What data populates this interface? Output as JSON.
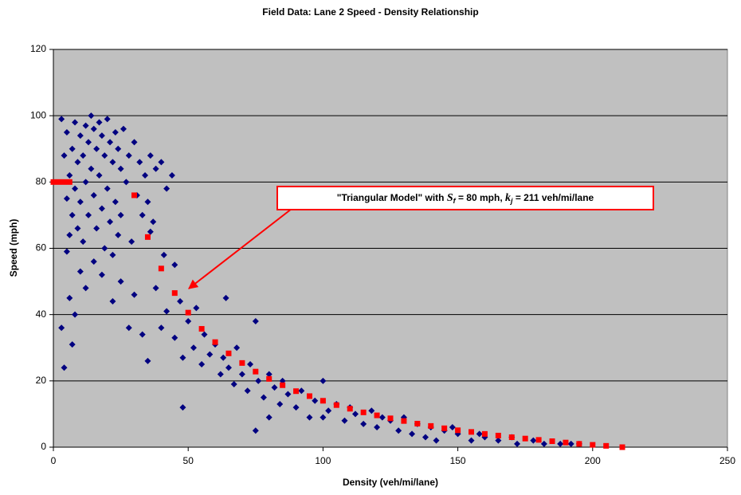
{
  "chart_data": {
    "type": "scatter",
    "title": "Field Data: Lane 2 Speed - Density Relationship",
    "x_label": "Density (veh/mi/lane)",
    "y_label": "Speed (mph)",
    "annotation": [
      "\"Triangular Model\" with ",
      "S",
      "f",
      " = 80 mph, ",
      "k",
      "j",
      " = 211 veh/mi/lane"
    ],
    "annotation_color": "#ff0000",
    "xlim": [
      0,
      250
    ],
    "xticks": [
      0,
      50,
      100,
      150,
      200,
      250
    ],
    "ylim": [
      0,
      120
    ],
    "yticks": [
      0,
      20,
      40,
      60,
      80,
      100,
      120
    ],
    "grid": true,
    "background": "#c0c0c0",
    "series": [
      {
        "color": "#000080",
        "marker": "diamond",
        "x": [
          3,
          4,
          5,
          5,
          6,
          6,
          7,
          7,
          8,
          8,
          9,
          9,
          10,
          10,
          11,
          11,
          12,
          12,
          13,
          13,
          14,
          14,
          15,
          15,
          16,
          16,
          17,
          17,
          18,
          18,
          19,
          19,
          20,
          20,
          21,
          21,
          22,
          22,
          23,
          23,
          24,
          24,
          25,
          25,
          26,
          27,
          28,
          29,
          30,
          31,
          32,
          33,
          34,
          35,
          36,
          37,
          38,
          40,
          42,
          44,
          5,
          6,
          7,
          4,
          3,
          8,
          10,
          12,
          15,
          18,
          22,
          25,
          28,
          30,
          33,
          35,
          38,
          40,
          42,
          45,
          47,
          48,
          50,
          52,
          53,
          55,
          56,
          58,
          60,
          62,
          63,
          65,
          67,
          68,
          70,
          72,
          73,
          75,
          76,
          78,
          80,
          82,
          84,
          85,
          87,
          90,
          92,
          95,
          97,
          100,
          102,
          105,
          108,
          110,
          112,
          115,
          118,
          120,
          122,
          125,
          128,
          130,
          133,
          135,
          138,
          140,
          142,
          145,
          148,
          150,
          155,
          158,
          160,
          165,
          170,
          172,
          178,
          182,
          188,
          192,
          195,
          36,
          45,
          64,
          75,
          80,
          100,
          48,
          41
        ],
        "values": [
          99,
          88,
          75,
          95,
          82,
          64,
          90,
          70,
          98,
          78,
          86,
          66,
          94,
          74,
          88,
          62,
          97,
          80,
          92,
          70,
          100,
          84,
          96,
          76,
          90,
          66,
          98,
          82,
          94,
          72,
          88,
          60,
          99,
          78,
          92,
          68,
          86,
          58,
          95,
          74,
          90,
          64,
          84,
          70,
          96,
          80,
          88,
          62,
          92,
          76,
          86,
          70,
          82,
          74,
          88,
          68,
          84,
          86,
          78,
          82,
          59,
          45,
          31,
          24,
          36,
          40,
          53,
          48,
          56,
          52,
          44,
          50,
          36,
          46,
          34,
          26,
          48,
          36,
          41,
          33,
          44,
          12,
          38,
          30,
          42,
          25,
          34,
          28,
          31,
          22,
          27,
          24,
          19,
          30,
          22,
          17,
          25,
          5,
          20,
          15,
          22,
          18,
          13,
          20,
          16,
          12,
          17,
          9,
          14,
          20,
          11,
          13,
          8,
          12,
          10,
          7,
          11,
          6,
          9,
          8,
          5,
          9,
          4,
          7,
          3,
          6,
          2,
          5,
          6,
          4,
          2,
          4,
          3,
          2,
          3,
          1,
          2,
          1,
          1,
          1,
          1,
          65,
          55,
          45,
          38,
          9,
          9,
          27,
          58
        ]
      },
      {
        "color": "#ff0000",
        "marker": "square",
        "x": [
          0,
          2,
          4,
          6,
          30,
          35,
          40,
          45,
          50,
          55,
          60,
          65,
          70,
          75,
          80,
          85,
          90,
          95,
          100,
          105,
          110,
          115,
          120,
          125,
          130,
          135,
          140,
          145,
          150,
          155,
          160,
          165,
          170,
          175,
          180,
          185,
          190,
          195,
          200,
          205,
          211
        ],
        "values": [
          80,
          80,
          80,
          80,
          76.0,
          63.4,
          53.9,
          46.5,
          40.6,
          35.7,
          31.7,
          28.3,
          25.4,
          22.8,
          20.6,
          18.7,
          16.9,
          15.4,
          14.0,
          12.7,
          11.6,
          10.5,
          9.6,
          8.7,
          7.9,
          7.1,
          6.4,
          5.7,
          5.1,
          4.6,
          4.0,
          3.5,
          3.0,
          2.6,
          2.2,
          1.8,
          1.4,
          1.0,
          0.7,
          0.4,
          0
        ]
      }
    ]
  }
}
